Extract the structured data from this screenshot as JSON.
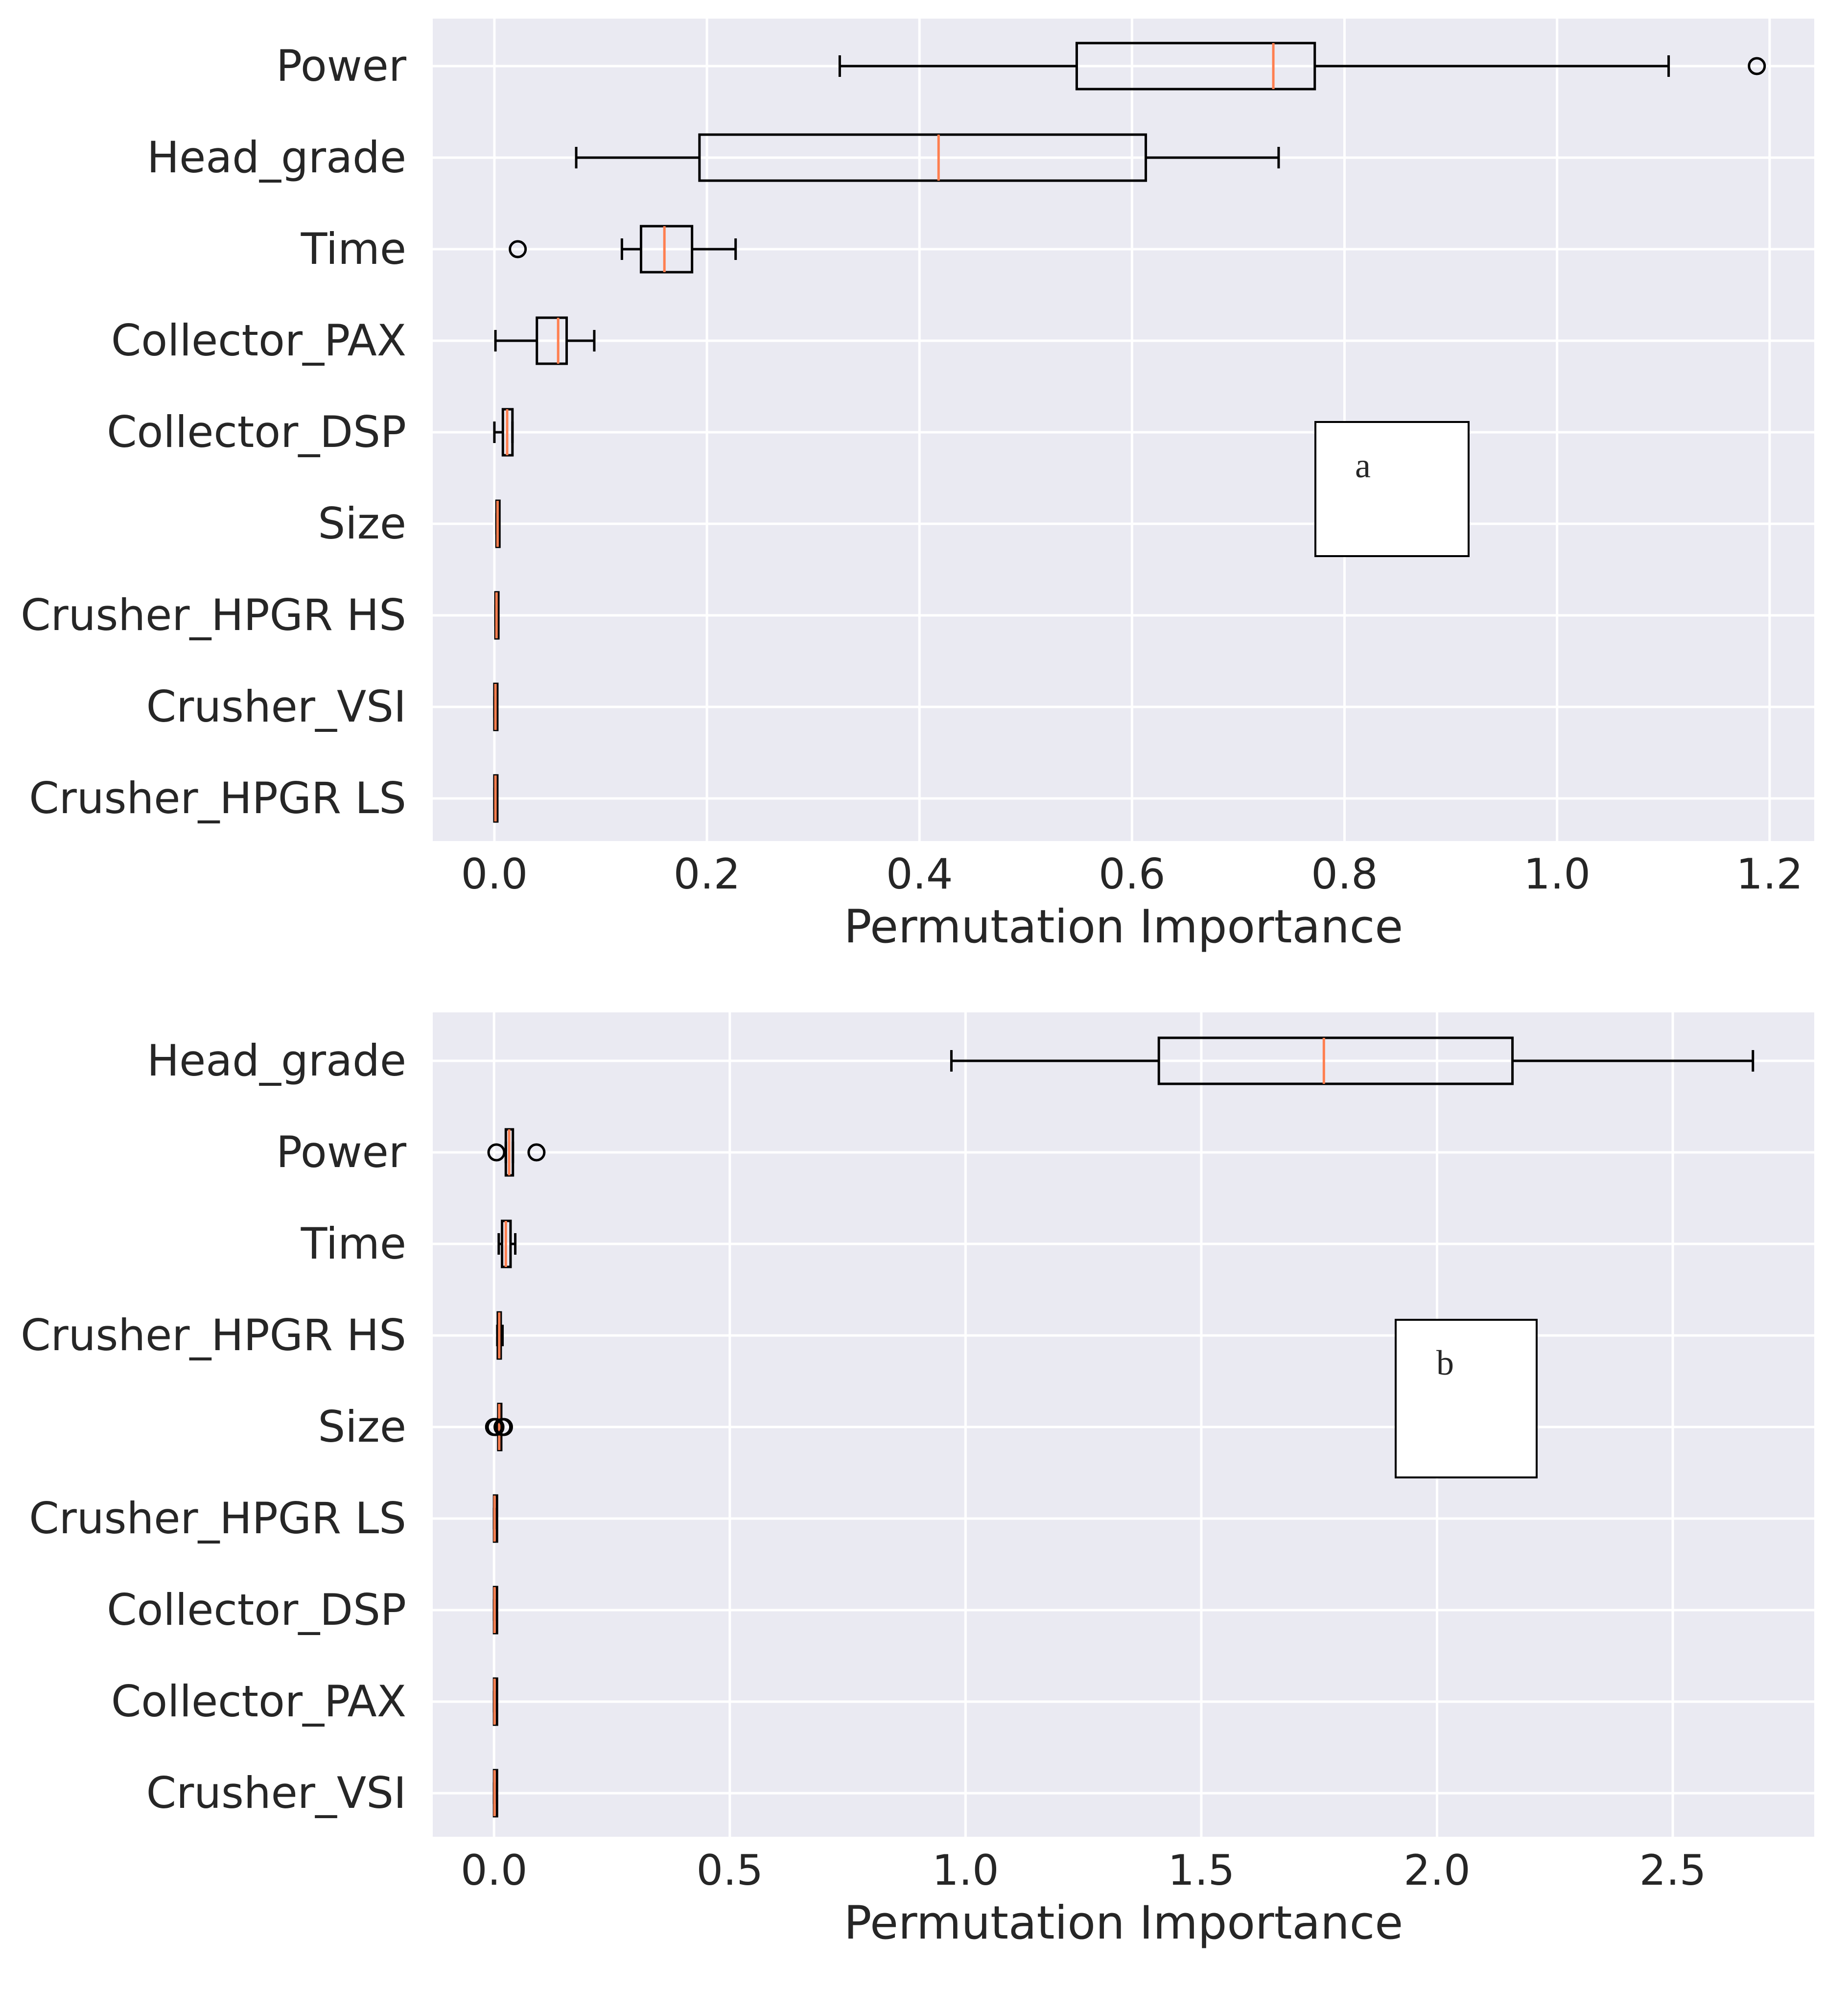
{
  "chart_data": [
    {
      "type": "boxplot",
      "orientation": "horizontal",
      "panel_label": "a",
      "xlabel": "Permutation Importance",
      "xlim": [
        -0.058,
        1.242
      ],
      "xticks": [
        0.0,
        0.2,
        0.4,
        0.6,
        0.8,
        1.0,
        1.2
      ],
      "xtick_labels": [
        "0.0",
        "0.2",
        "0.4",
        "0.6",
        "0.8",
        "1.0",
        "1.2"
      ],
      "grid": true,
      "categories": [
        "Power",
        "Head_grade",
        "Time",
        "Collector_PAX",
        "Collector_DSP",
        "Size",
        "Crusher_HPGR HS",
        "Crusher_VSI",
        "Crusher_HPGR LS"
      ],
      "boxes": [
        {
          "label": "Power",
          "whisker_low": 0.325,
          "q1": 0.548,
          "median": 0.733,
          "q3": 0.772,
          "whisker_high": 1.105,
          "outliers": [
            1.188
          ]
        },
        {
          "label": "Head_grade",
          "whisker_low": 0.077,
          "q1": 0.193,
          "median": 0.418,
          "q3": 0.613,
          "whisker_high": 0.738,
          "outliers": []
        },
        {
          "label": "Time",
          "whisker_low": 0.12,
          "q1": 0.138,
          "median": 0.16,
          "q3": 0.186,
          "whisker_high": 0.227,
          "outliers": [
            0.022
          ]
        },
        {
          "label": "Collector_PAX",
          "whisker_low": 0.001,
          "q1": 0.04,
          "median": 0.06,
          "q3": 0.068,
          "whisker_high": 0.094,
          "outliers": []
        },
        {
          "label": "Collector_DSP",
          "whisker_low": 0.0,
          "q1": 0.008,
          "median": 0.012,
          "q3": 0.017,
          "whisker_high": 0.017,
          "outliers": []
        },
        {
          "label": "Size",
          "whisker_low": 0.002,
          "q1": 0.002,
          "median": 0.003,
          "q3": 0.004,
          "whisker_high": 0.004,
          "outliers": []
        },
        {
          "label": "Crusher_HPGR HS",
          "whisker_low": 0.001,
          "q1": 0.001,
          "median": 0.002,
          "q3": 0.002,
          "whisker_high": 0.002,
          "outliers": []
        },
        {
          "label": "Crusher_VSI",
          "whisker_low": 0.0,
          "q1": 0.0,
          "median": 0.001,
          "q3": 0.001,
          "whisker_high": 0.001,
          "outliers": []
        },
        {
          "label": "Crusher_HPGR LS",
          "whisker_low": 0.0,
          "q1": 0.0,
          "median": 0.001,
          "q3": 0.001,
          "whisker_high": 0.001,
          "outliers": []
        }
      ]
    },
    {
      "type": "boxplot",
      "orientation": "horizontal",
      "panel_label": "b",
      "xlabel": "Permutation Importance",
      "xlim": [
        -0.13,
        2.8
      ],
      "xticks": [
        0.0,
        0.5,
        1.0,
        1.5,
        2.0,
        2.5
      ],
      "xtick_labels": [
        "0.0",
        "0.5",
        "1.0",
        "1.5",
        "2.0",
        "2.5"
      ],
      "grid": true,
      "categories": [
        "Head_grade",
        "Power",
        "Time",
        "Crusher_HPGR HS",
        "Size",
        "Crusher_HPGR LS",
        "Collector_DSP",
        "Collector_PAX",
        "Crusher_VSI"
      ],
      "boxes": [
        {
          "label": "Head_grade",
          "whisker_low": 0.97,
          "q1": 1.41,
          "median": 1.76,
          "q3": 2.16,
          "whisker_high": 2.67,
          "outliers": []
        },
        {
          "label": "Power",
          "whisker_low": 0.025,
          "q1": 0.025,
          "median": 0.032,
          "q3": 0.04,
          "whisker_high": 0.04,
          "outliers": [
            0.005,
            0.09
          ]
        },
        {
          "label": "Time",
          "whisker_low": 0.01,
          "q1": 0.017,
          "median": 0.025,
          "q3": 0.035,
          "whisker_high": 0.045,
          "outliers": []
        },
        {
          "label": "Crusher_HPGR HS",
          "whisker_low": 0.007,
          "q1": 0.008,
          "median": 0.011,
          "q3": 0.014,
          "whisker_high": 0.018,
          "outliers": []
        },
        {
          "label": "Size",
          "whisker_low": 0.009,
          "q1": 0.009,
          "median": 0.011,
          "q3": 0.013,
          "whisker_high": 0.013,
          "outliers": [
            0.0,
            0.003,
            0.018,
            0.021
          ]
        },
        {
          "label": "Crusher_HPGR LS",
          "whisker_low": 0.0,
          "q1": 0.0,
          "median": 0.001,
          "q3": 0.002,
          "whisker_high": 0.002,
          "outliers": []
        },
        {
          "label": "Collector_DSP",
          "whisker_low": 0.0,
          "q1": 0.0,
          "median": 0.001,
          "q3": 0.001,
          "whisker_high": 0.001,
          "outliers": []
        },
        {
          "label": "Collector_PAX",
          "whisker_low": 0.0,
          "q1": 0.0,
          "median": 0.001,
          "q3": 0.001,
          "whisker_high": 0.001,
          "outliers": []
        },
        {
          "label": "Crusher_VSI",
          "whisker_low": 0.0,
          "q1": 0.0,
          "median": 0.001,
          "q3": 0.001,
          "whisker_high": 0.001,
          "outliers": []
        }
      ]
    }
  ],
  "colors": {
    "plot_background": "#eaeaf2",
    "figure_background": "#ffffff",
    "grid": "#ffffff",
    "box_edge": "#000000",
    "median": "#ff7f50",
    "label_box_fill": "#ffffff",
    "text": "#262626"
  }
}
